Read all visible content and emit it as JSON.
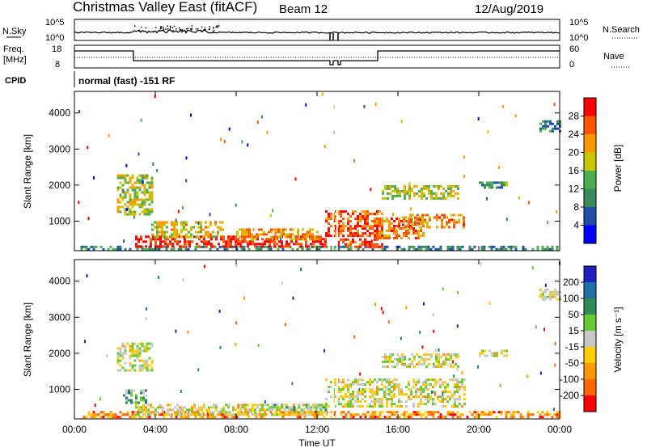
{
  "header": {
    "title": "Christmas Valley East (fitACF)",
    "beam": "Beam 12",
    "date": "12/Aug/2019"
  },
  "top_panels": {
    "nsky_label": "N.Sky",
    "nsky_ticks": [
      "10^5",
      "10^0"
    ],
    "nsearch_label": "N.Search",
    "nsearch_ticks": [
      "10^5",
      "10^0"
    ],
    "freq_label_line1": "Freq.",
    "freq_label_line2": "[MHz]",
    "freq_ticks": [
      "18",
      "8"
    ],
    "nave_label": "Nave",
    "nave_ticks": [
      "60",
      "0"
    ],
    "cpid_label": "CPID",
    "cpid_text": "normal (fast) -151 RF"
  },
  "colors": {
    "power_scale": [
      "#0000ff",
      "#1f4fa8",
      "#3a8a5a",
      "#4caf50",
      "#c8c800",
      "#ff9900",
      "#ff5500",
      "#ff0000"
    ],
    "velocity_scale": [
      "#ff0000",
      "#ff6600",
      "#ff9900",
      "#ffcc00",
      "#c8c8c8",
      "#66cc33",
      "#2e8b57",
      "#1f6fa8",
      "#2020c0"
    ]
  },
  "chart_data": [
    {
      "type": "heatmap",
      "name": "power",
      "xlabel": "",
      "ylabel": "Slant Range [km]",
      "y_ticks": [
        1000,
        2000,
        3000,
        4000
      ],
      "ylim": [
        180,
        4600
      ],
      "x_ticks": [
        "00:00",
        "04:00",
        "08:00",
        "12:00",
        "16:00",
        "20:00",
        "00:00"
      ],
      "xlim_hours": [
        0,
        24
      ],
      "colorbar": {
        "label": "Power [dB]",
        "ticks": [
          "4",
          "8",
          "12",
          "16",
          "20",
          "24",
          "28"
        ],
        "range": [
          0,
          32
        ]
      },
      "regions": [
        {
          "t0": 0.3,
          "t1": 24,
          "r0": 200,
          "r1": 320,
          "level": 0.3
        },
        {
          "t0": 3.0,
          "t1": 12.4,
          "r0": 300,
          "r1": 600,
          "level": 0.92
        },
        {
          "t0": 13.0,
          "t1": 15.2,
          "r0": 280,
          "r1": 520,
          "level": 0.9
        },
        {
          "t0": 3.8,
          "t1": 7.4,
          "r0": 550,
          "r1": 1000,
          "level": 0.6
        },
        {
          "t0": 2.1,
          "t1": 3.9,
          "r0": 1200,
          "r1": 2300,
          "level": 0.55
        },
        {
          "t0": 8.0,
          "t1": 12.0,
          "r0": 500,
          "r1": 800,
          "level": 0.7
        },
        {
          "t0": 12.4,
          "t1": 15.2,
          "r0": 600,
          "r1": 1300,
          "level": 0.82
        },
        {
          "t0": 14.8,
          "t1": 17.3,
          "r0": 500,
          "r1": 1100,
          "level": 0.78
        },
        {
          "t0": 16.2,
          "t1": 19.3,
          "r0": 800,
          "r1": 1200,
          "level": 0.72
        },
        {
          "t0": 15.2,
          "t1": 19.0,
          "r0": 1600,
          "r1": 2000,
          "level": 0.55
        },
        {
          "t0": 20.0,
          "t1": 21.4,
          "r0": 1900,
          "r1": 2100,
          "level": 0.35
        },
        {
          "t0": 23.0,
          "t1": 24.0,
          "r0": 3500,
          "r1": 3800,
          "level": 0.3
        }
      ]
    },
    {
      "type": "heatmap",
      "name": "velocity",
      "xlabel": "Time UT",
      "ylabel": "Slant Range [km]",
      "y_ticks": [
        1000,
        2000,
        3000,
        4000
      ],
      "ylim": [
        180,
        4600
      ],
      "x_ticks": [
        "00:00",
        "04:00",
        "08:00",
        "12:00",
        "16:00",
        "20:00",
        "00:00"
      ],
      "xlim_hours": [
        0,
        24
      ],
      "colorbar": {
        "label": "Velocity [m s⁻¹]",
        "ticks": [
          "-200",
          "-100",
          "-50",
          "-15",
          "15",
          "50",
          "100",
          "200"
        ],
        "range": [
          -250,
          250
        ]
      },
      "regions": [
        {
          "t0": 0.3,
          "t1": 24,
          "r0": 200,
          "r1": 400,
          "level": 0.25
        },
        {
          "t0": 3.0,
          "t1": 12.4,
          "r0": 300,
          "r1": 600,
          "level": 0.45
        },
        {
          "t0": 9.5,
          "t1": 12.4,
          "r0": 400,
          "r1": 600,
          "level": 0.62
        },
        {
          "t0": 2.1,
          "t1": 3.9,
          "r0": 1500,
          "r1": 2300,
          "level": 0.48
        },
        {
          "t0": 2.4,
          "t1": 3.6,
          "r0": 600,
          "r1": 1000,
          "level": 0.62
        },
        {
          "t0": 12.4,
          "t1": 19.3,
          "r0": 500,
          "r1": 1300,
          "level": 0.48
        },
        {
          "t0": 15.2,
          "t1": 19.0,
          "r0": 1600,
          "r1": 2000,
          "level": 0.48
        },
        {
          "t0": 20.0,
          "t1": 21.4,
          "r0": 1900,
          "r1": 2100,
          "level": 0.48
        },
        {
          "t0": 23.0,
          "t1": 24.0,
          "r0": 3500,
          "r1": 3800,
          "level": 0.48
        }
      ]
    }
  ]
}
